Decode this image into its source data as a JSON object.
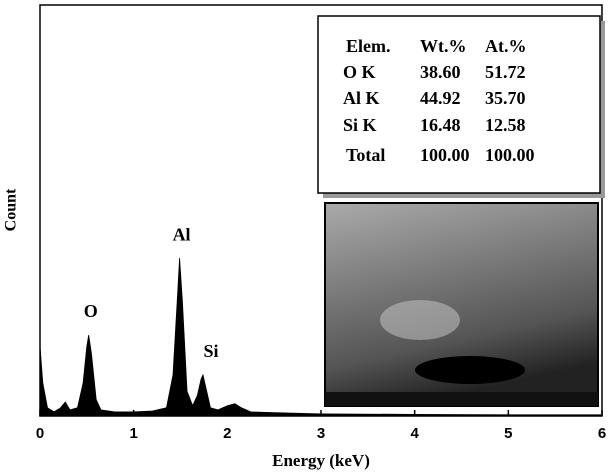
{
  "chart_data": {
    "type": "area",
    "xlabel": "Energy (keV)",
    "ylabel": "Count",
    "x": [
      0,
      0.03,
      0.08,
      0.15,
      0.22,
      0.27,
      0.32,
      0.4,
      0.46,
      0.5,
      0.52,
      0.55,
      0.6,
      0.65,
      0.8,
      1.0,
      1.2,
      1.35,
      1.42,
      1.47,
      1.49,
      1.52,
      1.57,
      1.63,
      1.68,
      1.72,
      1.74,
      1.77,
      1.82,
      1.9,
      2.0,
      2.08,
      2.15,
      2.25,
      2.5,
      3.0,
      4.0,
      5.0,
      6.0
    ],
    "values": [
      17,
      8,
      2,
      1,
      2,
      3.4,
      1.5,
      2,
      8,
      17,
      19.7,
      15,
      4,
      1.5,
      1,
      1,
      1.2,
      2,
      10,
      30,
      38.4,
      28,
      6,
      2.5,
      5,
      9,
      10,
      7,
      2,
      1.5,
      2.5,
      3,
      2,
      1,
      0.8,
      0.5,
      0.4,
      0.3,
      0.3
    ],
    "color": "#000000",
    "xlim": [
      0,
      6
    ],
    "xticks": [
      0,
      1,
      2,
      3,
      4,
      5,
      6
    ],
    "ylim": [
      0,
      100
    ],
    "annotations": [
      {
        "text": "O",
        "x": 0.52
      },
      {
        "text": "Al",
        "x": 1.49
      },
      {
        "text": "Si",
        "x": 1.74
      }
    ],
    "table": {
      "header": [
        "Elem.",
        "Wt.%",
        "At.%"
      ],
      "rows": [
        [
          "O K",
          "38.60",
          "51.72"
        ],
        [
          "Al K",
          "44.92",
          "35.70"
        ],
        [
          "Si K",
          "16.48",
          "12.58"
        ],
        [
          "Total",
          "100.00",
          "100.00"
        ]
      ]
    }
  }
}
